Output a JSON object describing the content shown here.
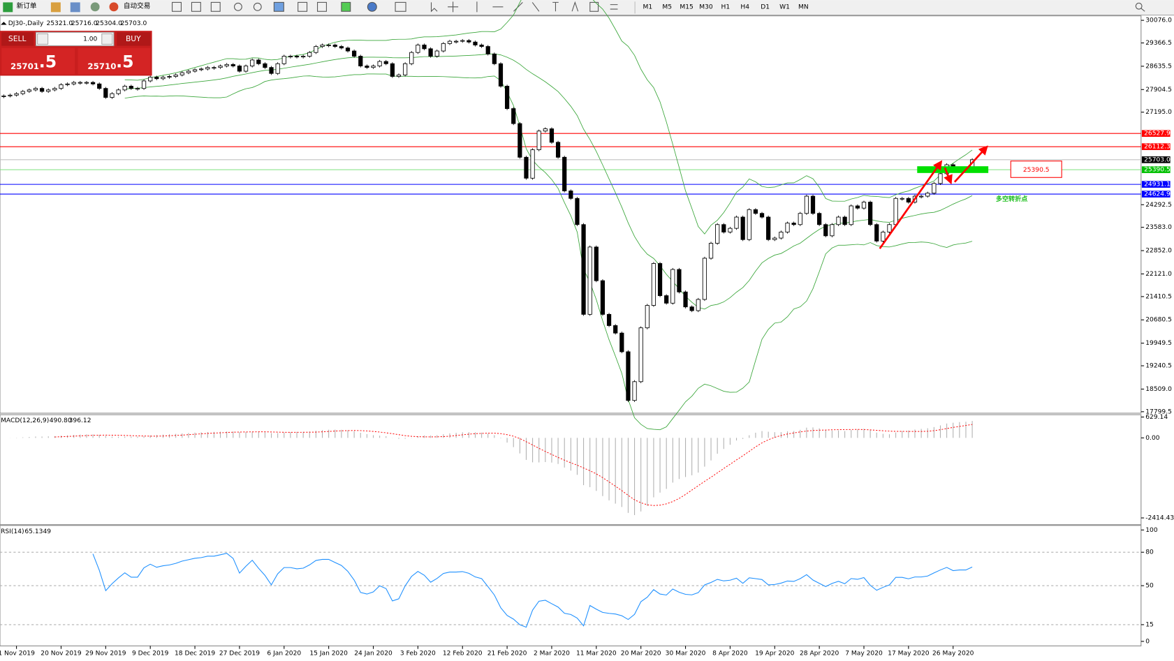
{
  "toolbar": {
    "new_order": "新订单",
    "auto_trading": "自动交易",
    "timeframes": [
      "M1",
      "M5",
      "M15",
      "M30",
      "H1",
      "H4",
      "D1",
      "W1",
      "MN"
    ]
  },
  "trade_panel": {
    "sell": "SELL",
    "buy": "BUY",
    "lot": {
      "value": 1,
      "label": "1.00"
    },
    "sell_main": "25701",
    "sell_pips": ".5",
    "buy_main": "25710",
    "buy_pips": ".5"
  },
  "chart_data": {
    "type": "candlestick",
    "title": "DJ30-,Daily",
    "ohlc": [
      {
        "value": 25321,
        "label": "25321.0"
      },
      {
        "value": 25716,
        "label": "25716.0"
      },
      {
        "value": 25304,
        "label": "25304.0"
      },
      {
        "value": 25703,
        "label": "25703.0"
      }
    ],
    "categories": [
      null,
      null,
      "1 Nov 2019",
      null,
      null,
      null,
      null,
      null,
      null,
      "20 Nov 2019",
      null,
      null,
      null,
      null,
      null,
      null,
      "29 Nov 2019",
      null,
      null,
      null,
      null,
      null,
      null,
      "9 Dec 2019",
      null,
      null,
      null,
      null,
      null,
      null,
      "18 Dec 2019",
      null,
      null,
      null,
      null,
      null,
      null,
      "27 Dec 2019",
      null,
      null,
      null,
      null,
      null,
      null,
      "6 Jan 2020",
      null,
      null,
      null,
      null,
      null,
      null,
      "15 Jan 2020",
      null,
      null,
      null,
      null,
      null,
      null,
      "24 Jan 2020",
      null,
      null,
      null,
      null,
      null,
      null,
      "3 Feb 2020",
      null,
      null,
      null,
      null,
      null,
      null,
      "12 Feb 2020",
      null,
      null,
      null,
      null,
      null,
      null,
      "21 Feb 2020",
      null,
      null,
      null,
      null,
      null,
      null,
      "2 Mar 2020",
      null,
      null,
      null,
      null,
      null,
      null,
      "11 Mar 2020",
      null,
      null,
      null,
      null,
      null,
      null,
      "20 Mar 2020",
      null,
      null,
      null,
      null,
      null,
      null,
      "30 Mar 2020",
      null,
      null,
      null,
      null,
      null,
      null,
      "8 Apr 2020",
      null,
      null,
      null,
      null,
      null,
      null,
      "19 Apr 2020",
      null,
      null,
      null,
      null,
      null,
      null,
      "28 Apr 2020",
      null,
      null,
      null,
      null,
      null,
      null,
      "7 May 2020",
      null,
      null,
      null,
      null,
      null,
      null,
      "17 May 2020",
      null,
      null,
      null,
      null,
      null,
      null,
      "26 May 2020",
      null,
      null,
      null
    ],
    "closes": [
      27705,
      27730,
      27776,
      27846,
      27893,
      27940,
      27846,
      27893,
      27940,
      28057,
      28081,
      28128,
      28128,
      28128,
      28081,
      27940,
      27658,
      27776,
      27893,
      28010,
      27940,
      27940,
      28175,
      28292,
      28245,
      28292,
      28316,
      28363,
      28433,
      28480,
      28527,
      28550,
      28597,
      28597,
      28644,
      28691,
      28644,
      28480,
      28644,
      28832,
      28715,
      28597,
      28410,
      28715,
      28950,
      28950,
      28926,
      28950,
      29067,
      29255,
      29302,
      29302,
      29255,
      29208,
      29114,
      28950,
      28644,
      28597,
      28644,
      28785,
      28715,
      28316,
      28363,
      28715,
      29067,
      29302,
      29184,
      28950,
      29114,
      29348,
      29419,
      29419,
      29442,
      29395,
      29302,
      29255,
      29020,
      28715,
      28011,
      27307,
      26837,
      25781,
      25124,
      26016,
      26603,
      26673,
      26250,
      25781,
      24725,
      24490,
      23669,
      20853,
      22965,
      21909,
      20853,
      20501,
      20266,
      19680,
      18153,
      18742,
      20430,
      21134,
      22449,
      21439,
      21204,
      22261,
      21556,
      21087,
      20970,
      21321,
      22613,
      23082,
      23669,
      23434,
      23551,
      23904,
      23199,
      24138,
      24020,
      23904,
      23199,
      23246,
      23434,
      23716,
      23669,
      24020,
      24560,
      24020,
      23669,
      23317,
      23669,
      23904,
      23669,
      24255,
      24185,
      24373,
      23669,
      23152,
      23434,
      23669,
      24490,
      24490,
      24373,
      24560,
      24560,
      24654,
      24959,
      25265,
      25546,
      25359,
      25429,
      25429,
      25703
    ],
    "ylim": [
      17753,
      30193
    ],
    "yticks": [
      {
        "value": 30076,
        "label": "30076.0"
      },
      29366.5,
      28635.5,
      27904.5,
      {
        "value": 27195,
        "label": "27195.0"
      },
      24292.5,
      {
        "value": 23583,
        "label": "23583.0"
      },
      {
        "value": 22852,
        "label": "22852.0"
      },
      {
        "value": 22121,
        "label": "22121.0"
      },
      21410.5,
      20680.5,
      19949.5,
      19240.5,
      {
        "value": 18509,
        "label": "18509.0"
      },
      17799.5
    ],
    "levels": [
      {
        "value": 26527.9,
        "color": "#ff0000",
        "tag": "#ff0000"
      },
      {
        "value": 26112.3,
        "color": "#ff0000",
        "tag": "#ff0000"
      },
      {
        "value": 25703,
        "label": "25703.0",
        "color": "#c0c0c0",
        "tag": "#000000"
      },
      {
        "value": 25390.5,
        "color": "#7ee07e",
        "tag": "#00c000"
      },
      {
        "value": 24931.1,
        "color": "#0000ff",
        "tag": "#0000ff"
      },
      {
        "value": 24624.9,
        "color": "#0000ff",
        "tag": "#0000ff"
      }
    ],
    "bands_color": "#3aa63a",
    "annotations": {
      "price_box": 25390.5,
      "text": "多空转折点"
    },
    "macd": {
      "name": "MACD(12,26,9)",
      "main": {
        "value": 490.8,
        "label": "490.80"
      },
      "signal": {
        "value": 396.12,
        "label": "396.12"
      },
      "ylim": [
        -2596,
        677
      ],
      "yticks": [
        629.14,
        {
          "value": 0,
          "label": "0.00"
        },
        -2414.43
      ],
      "hist_color": "#b0b0b0",
      "signal_color": "#ff0000"
    },
    "rsi": {
      "name": "RSI(14)",
      "value": 65.1349,
      "ylim": [
        -3.4,
        103.4
      ],
      "yticks": [
        100,
        80,
        50,
        15,
        0
      ],
      "levels": [
        80,
        50,
        15
      ],
      "color": "#1e90ff"
    }
  }
}
